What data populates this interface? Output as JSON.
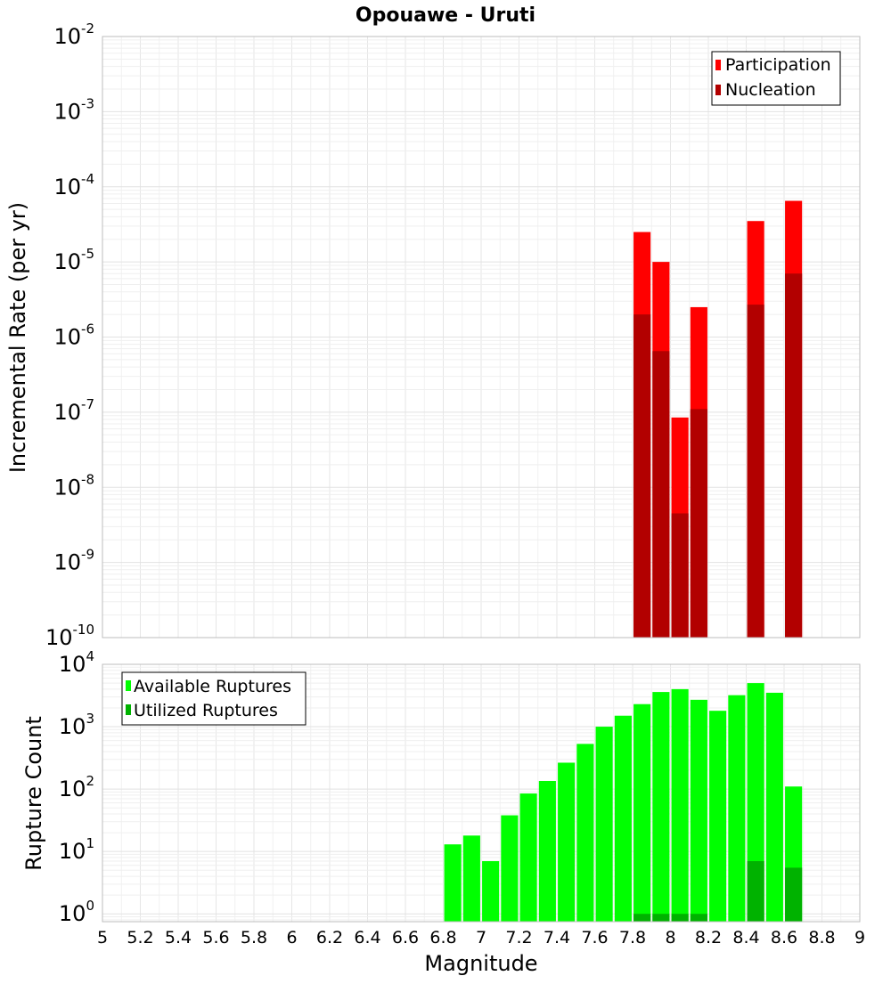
{
  "chart_data": [
    {
      "type": "bar",
      "title": "Opouawe - Uruti",
      "ylabel": "Incremental Rate (per yr)",
      "xlabel": "",
      "yscale": "log",
      "ylim": [
        1e-10,
        0.01
      ],
      "xlim": [
        5,
        9
      ],
      "y_tick_exponents": [
        "-10",
        "-9",
        "-8",
        "-7",
        "-6",
        "-5",
        "-4",
        "-3",
        "-2"
      ],
      "y_tick_base": "10",
      "bar_width": 0.09,
      "legend": {
        "position": "top-right",
        "entries": [
          "Participation",
          "Nucleation"
        ]
      },
      "series": [
        {
          "name": "Participation",
          "color": "#ff0000",
          "x": [
            7.85,
            7.95,
            8.05,
            8.15,
            8.45,
            8.65
          ],
          "values": [
            2.5e-05,
            1e-05,
            8.5e-08,
            2.5e-06,
            3.5e-05,
            6.5e-05
          ]
        },
        {
          "name": "Nucleation",
          "color": "#b20000",
          "x": [
            7.85,
            7.95,
            8.05,
            8.15,
            8.45,
            8.65
          ],
          "values": [
            2e-06,
            6.5e-07,
            4.5e-09,
            1.1e-07,
            2.7e-06,
            7e-06
          ]
        }
      ]
    },
    {
      "type": "bar",
      "title": "",
      "ylabel": "Rupture Count",
      "xlabel": "Magnitude",
      "yscale": "log",
      "ylim": [
        0.75,
        10000
      ],
      "xlim": [
        5,
        9
      ],
      "x_ticks": [
        "5",
        "5.2",
        "5.4",
        "5.6",
        "5.8",
        "6",
        "6.2",
        "6.4",
        "6.6",
        "6.8",
        "7",
        "7.2",
        "7.4",
        "7.6",
        "7.8",
        "8",
        "8.2",
        "8.4",
        "8.6",
        "8.8",
        "9"
      ],
      "y_tick_exponents": [
        "0",
        "1",
        "2",
        "3",
        "4"
      ],
      "y_tick_base": "10",
      "bar_width": 0.09,
      "legend": {
        "position": "top-left",
        "entries": [
          "Available Ruptures",
          "Utilized Ruptures"
        ]
      },
      "series": [
        {
          "name": "Available Ruptures",
          "color": "#00ff00",
          "x": [
            6.85,
            6.95,
            7.05,
            7.15,
            7.25,
            7.35,
            7.45,
            7.55,
            7.65,
            7.75,
            7.85,
            7.95,
            8.05,
            8.15,
            8.25,
            8.35,
            8.45,
            8.55,
            8.65
          ],
          "values": [
            13,
            18,
            7,
            38,
            85,
            135,
            265,
            530,
            1000,
            1500,
            2300,
            3600,
            4000,
            2700,
            1800,
            3200,
            5000,
            3500,
            110
          ]
        },
        {
          "name": "Utilized Ruptures",
          "color": "#00b200",
          "x": [
            7.85,
            7.95,
            8.05,
            8.15,
            8.45,
            8.65
          ],
          "values": [
            1,
            1,
            1,
            1,
            7,
            5.5
          ]
        }
      ]
    }
  ]
}
